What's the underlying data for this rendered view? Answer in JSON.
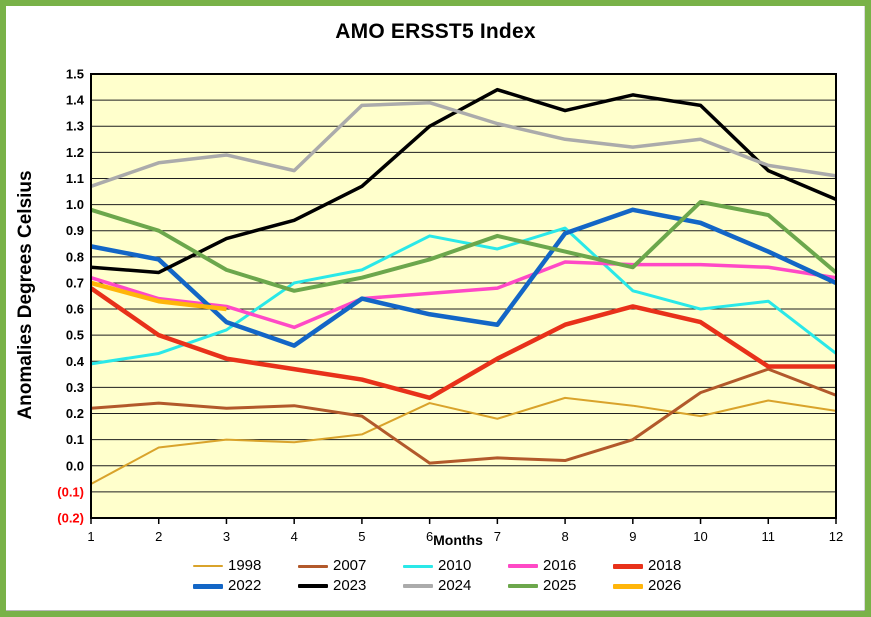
{
  "chart_data": {
    "type": "line",
    "title": "AMO ERSST5 Index",
    "xlabel": "Months",
    "ylabel": "Anomalies Degrees Celsius",
    "x": [
      1,
      2,
      3,
      4,
      5,
      6,
      7,
      8,
      9,
      10,
      11,
      12
    ],
    "xlim": [
      1,
      12
    ],
    "ylim": [
      -0.2,
      1.5
    ],
    "ytick_step": 0.1,
    "grid": true,
    "legend_position": "bottom",
    "plot_bg": "#FFFFCC",
    "grid_color": "#1f1f1f",
    "negative_tick_color": "#FF0000",
    "y_tick_labels": [
      "1.5",
      "1.4",
      "1.3",
      "1.2",
      "1.1",
      "1.0",
      "0.9",
      "0.8",
      "0.7",
      "0.6",
      "0.5",
      "0.4",
      "0.3",
      "0.2",
      "0.1",
      "0.0",
      "(0.1)",
      "(0.2)"
    ],
    "x_tick_labels": [
      "1",
      "2",
      "3",
      "4",
      "5",
      "6",
      "7",
      "8",
      "9",
      "10",
      "11",
      "12"
    ],
    "series": [
      {
        "name": "1998",
        "color": "#D9A32B",
        "width": 2,
        "values": [
          -0.07,
          0.07,
          0.1,
          0.09,
          0.12,
          0.24,
          0.18,
          0.26,
          0.23,
          0.19,
          0.25,
          0.21
        ]
      },
      {
        "name": "2007",
        "color": "#B2592B",
        "width": 3,
        "values": [
          0.22,
          0.24,
          0.22,
          0.23,
          0.19,
          0.01,
          0.03,
          0.02,
          0.1,
          0.28,
          0.37,
          0.27
        ]
      },
      {
        "name": "2010",
        "color": "#2AE8E8",
        "width": 3,
        "values": [
          0.39,
          0.43,
          0.52,
          0.7,
          0.75,
          0.88,
          0.83,
          0.91,
          0.67,
          0.6,
          0.63,
          0.43
        ]
      },
      {
        "name": "2016",
        "color": "#FF49C6",
        "width": 3.5,
        "values": [
          0.72,
          0.64,
          0.61,
          0.53,
          0.64,
          0.66,
          0.68,
          0.78,
          0.77,
          0.77,
          0.76,
          0.72
        ]
      },
      {
        "name": "2018",
        "color": "#E8311A",
        "width": 4.5,
        "values": [
          0.68,
          0.5,
          0.41,
          0.37,
          0.33,
          0.26,
          0.41,
          0.54,
          0.61,
          0.55,
          0.38,
          0.38
        ]
      },
      {
        "name": "2022",
        "color": "#1366C6",
        "width": 4.5,
        "values": [
          0.84,
          0.79,
          0.55,
          0.46,
          0.64,
          0.58,
          0.54,
          0.89,
          0.98,
          0.93,
          0.82,
          0.7
        ]
      },
      {
        "name": "2023",
        "color": "#000000",
        "width": 3.5,
        "values": [
          0.76,
          0.74,
          0.87,
          0.94,
          1.07,
          1.3,
          1.44,
          1.36,
          1.42,
          1.38,
          1.13,
          1.02
        ]
      },
      {
        "name": "2024",
        "color": "#ABABAB",
        "width": 3.5,
        "values": [
          1.07,
          1.16,
          1.19,
          1.13,
          1.38,
          1.39,
          1.31,
          1.25,
          1.22,
          1.25,
          1.15,
          1.11
        ]
      },
      {
        "name": "2025",
        "color": "#6CA74C",
        "width": 4,
        "values": [
          0.98,
          0.9,
          0.75,
          0.67,
          0.72,
          0.79,
          0.88,
          0.82,
          0.76,
          1.01,
          0.96,
          0.74
        ]
      },
      {
        "name": "2026",
        "color": "#FFB50A",
        "width": 4.5,
        "values": [
          0.7,
          0.63,
          0.6
        ]
      }
    ]
  },
  "frame": {
    "border_color": "#79B248"
  }
}
